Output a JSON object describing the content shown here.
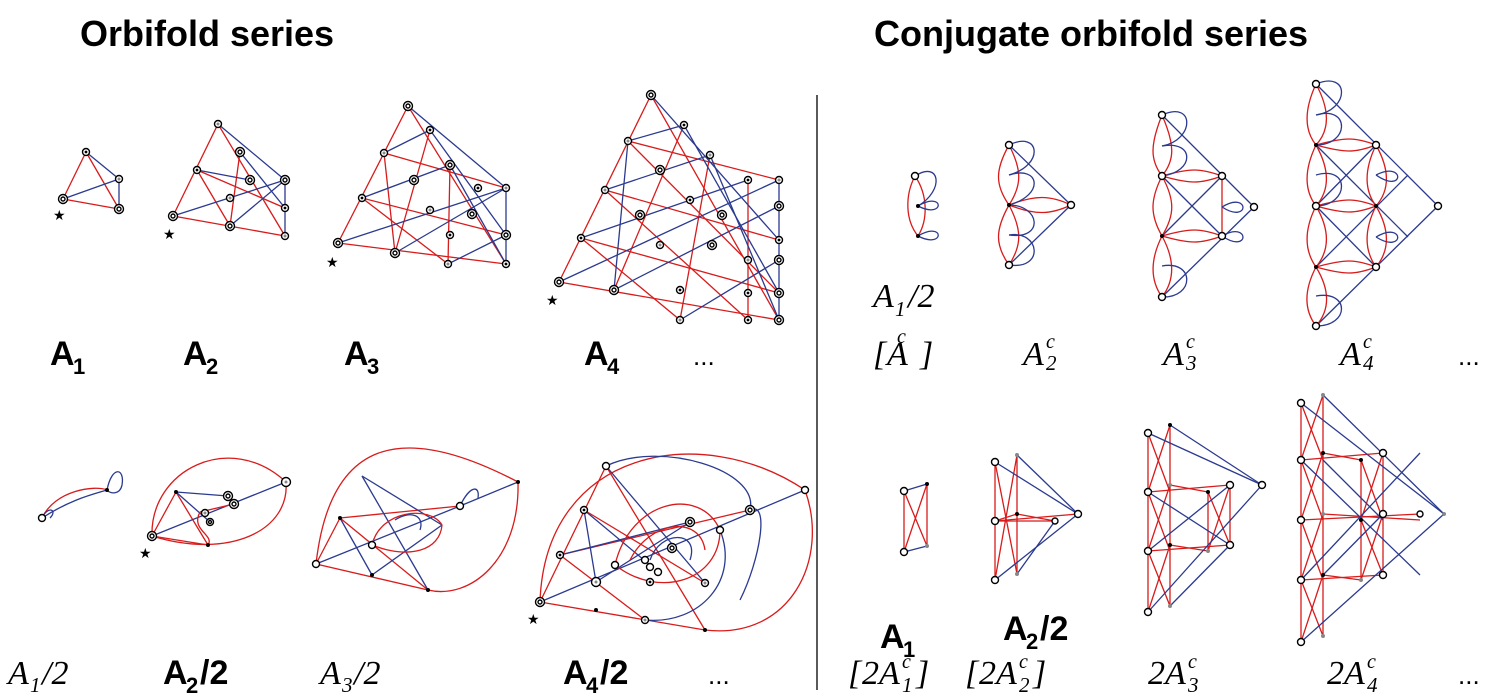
{
  "headers": {
    "left": "Orbifold series",
    "right": "Conjugate orbifold series"
  },
  "orbifold_row": [
    {
      "base": "A",
      "sub": "1"
    },
    {
      "base": "A",
      "sub": "2"
    },
    {
      "base": "A",
      "sub": "3"
    },
    {
      "base": "A",
      "sub": "4"
    }
  ],
  "orbifold_half_row": [
    {
      "base": "A",
      "sub": "1",
      "suffix": "/2",
      "style": "italic"
    },
    {
      "base": "A",
      "sub": "2",
      "suffix": "/2",
      "style": "bold"
    },
    {
      "base": "A",
      "sub": "3",
      "suffix": "/2",
      "style": "italic"
    },
    {
      "base": "A",
      "sub": "4",
      "suffix": "/2",
      "style": "bold"
    }
  ],
  "conj_top_row": {
    "first_line1": {
      "base": "A",
      "sub": "1",
      "suffix": "/2"
    },
    "first_line2": {
      "open": "[",
      "base": "A",
      "sup": "c",
      "close": "]"
    },
    "items": [
      {
        "base": "A",
        "sub": "2",
        "sup": "c"
      },
      {
        "base": "A",
        "sub": "3",
        "sup": "c"
      },
      {
        "base": "A",
        "sub": "4",
        "sup": "c"
      }
    ]
  },
  "conj_bottom_row": {
    "upper": [
      {
        "base": "A",
        "sub": "1",
        "suffix": ""
      },
      {
        "base": "A",
        "sub": "2",
        "suffix": "/2"
      }
    ],
    "lower": [
      {
        "open": "[",
        "prefix": "2A",
        "sub": "1",
        "sup": "c",
        "close": "]"
      },
      {
        "open": "[",
        "prefix": "2A",
        "sub": "2",
        "sup": "c",
        "close": "]"
      },
      {
        "open": "",
        "prefix": "2A",
        "sub": "3",
        "sup": "c",
        "close": ""
      },
      {
        "open": "",
        "prefix": "2A",
        "sub": "4",
        "sup": "c",
        "close": ""
      }
    ]
  },
  "ellipsis": "..."
}
